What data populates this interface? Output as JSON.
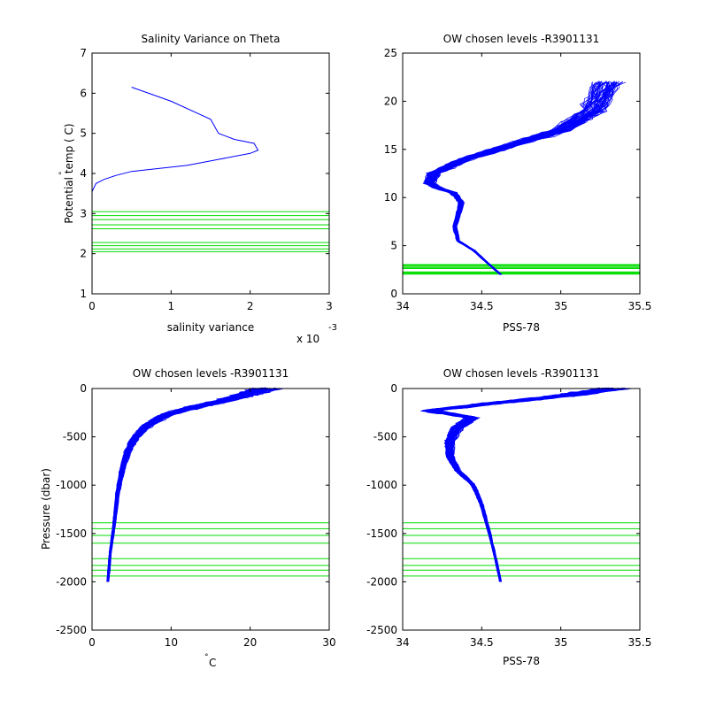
{
  "chart_data": [
    {
      "type": "line",
      "title": "Salinity Variance on Theta",
      "xlabel": "salinity variance",
      "ylabel": "Potential temp (°C)",
      "ylabel_main": "Potential temp ( C)",
      "ylabel_sup": "°",
      "xlim": [
        0,
        0.003
      ],
      "ylim": [
        1,
        7
      ],
      "xticks": [
        0,
        0.001,
        0.002,
        0.003
      ],
      "xtick_labels": [
        "0",
        "1",
        "2",
        "3"
      ],
      "yticks": [
        1,
        2,
        3,
        4,
        5,
        6,
        7
      ],
      "ytick_labels": [
        "1",
        "2",
        "3",
        "4",
        "5",
        "6",
        "7"
      ],
      "x_exponent_base": "x 10",
      "x_exponent_power": "-3",
      "series": [
        {
          "color": "#0000ff",
          "x": [
            0.0005,
            0.001,
            0.0015,
            0.0016,
            0.0018,
            0.00205,
            0.0021,
            0.002,
            0.0016,
            0.0012,
            0.0005,
            0.0003,
            0.00015,
            5e-05,
            0.0,
            0.0
          ],
          "y": [
            6.15,
            5.8,
            5.35,
            5.0,
            4.85,
            4.75,
            4.58,
            4.5,
            4.35,
            4.2,
            4.05,
            3.95,
            3.85,
            3.75,
            3.55,
            3.45
          ]
        }
      ],
      "hlines": {
        "color": "#00dd00",
        "values": [
          2.05,
          2.12,
          2.2,
          2.28,
          2.62,
          2.72,
          2.85,
          2.95,
          3.05
        ]
      }
    },
    {
      "type": "line",
      "title": "OW chosen levels -R3901131",
      "xlabel": "PSS-78",
      "ylabel": "",
      "xlim": [
        34,
        35.5
      ],
      "ylim": [
        0,
        25
      ],
      "xticks": [
        34,
        34.5,
        35,
        35.5
      ],
      "xtick_labels": [
        "34",
        "34.5",
        "35",
        "35.5"
      ],
      "yticks": [
        0,
        5,
        10,
        15,
        20,
        25
      ],
      "ytick_labels": [
        "0",
        "5",
        "10",
        "15",
        "20",
        "25"
      ],
      "profile": {
        "color": "#0000ff",
        "x": [
          34.62,
          34.55,
          34.45,
          34.35,
          34.33,
          34.37,
          34.32,
          34.22,
          34.17,
          34.2,
          34.4,
          34.7,
          35.0,
          35.2,
          35.3
        ],
        "y": [
          2.0,
          3.0,
          4.5,
          5.5,
          7.0,
          9.5,
          10.5,
          11.0,
          11.5,
          12.5,
          14.0,
          15.5,
          17.0,
          19.0,
          22.0
        ]
      },
      "hlines": {
        "color": "#00dd00",
        "values": [
          2.05,
          2.12,
          2.2,
          2.28,
          2.62,
          2.72,
          2.85,
          2.95,
          3.05
        ]
      }
    },
    {
      "type": "line",
      "title": "OW chosen levels -R3901131",
      "xlabel": "C",
      "xlabel_sup": "°",
      "ylabel": "Pressure (dbar)",
      "xlim": [
        0,
        30
      ],
      "ylim": [
        -2500,
        0
      ],
      "xticks": [
        0,
        10,
        20,
        30
      ],
      "xtick_labels": [
        "0",
        "10",
        "20",
        "30"
      ],
      "yticks": [
        -2500,
        -2000,
        -1500,
        -1000,
        -500,
        0
      ],
      "ytick_labels": [
        "-2500",
        "-2000",
        "-1500",
        "-1000",
        "-500",
        "0"
      ],
      "profile": {
        "color": "#0000ff",
        "x": [
          2.0,
          2.3,
          2.8,
          3.2,
          3.8,
          4.5,
          5.5,
          7.0,
          9.5,
          13.0,
          17.0,
          20.0,
          22.0
        ],
        "y": [
          -2000,
          -1700,
          -1400,
          -1100,
          -850,
          -650,
          -500,
          -380,
          -270,
          -190,
          -120,
          -50,
          0
        ]
      },
      "hlines": {
        "color": "#00dd00",
        "values": [
          -1390,
          -1450,
          -1520,
          -1600,
          -1760,
          -1830,
          -1880,
          -1940
        ]
      }
    },
    {
      "type": "line",
      "title": "OW chosen levels -R3901131",
      "xlabel": "PSS-78",
      "ylabel": "",
      "xlim": [
        34,
        35.5
      ],
      "ylim": [
        -2500,
        0
      ],
      "xticks": [
        34,
        34.5,
        35,
        35.5
      ],
      "xtick_labels": [
        "34",
        "34.5",
        "35",
        "35.5"
      ],
      "yticks": [
        -2500,
        -2000,
        -1500,
        -1000,
        -500,
        0
      ],
      "ytick_labels": [
        "-2500",
        "-2000",
        "-1500",
        "-1000",
        "-500",
        "0"
      ],
      "profile": {
        "color": "#0000ff",
        "x": [
          34.62,
          34.58,
          34.55,
          34.5,
          34.45,
          34.35,
          34.3,
          34.3,
          34.35,
          34.45,
          34.17,
          34.6,
          35.0,
          35.35
        ],
        "y": [
          -2000,
          -1700,
          -1500,
          -1200,
          -1000,
          -850,
          -700,
          -550,
          -400,
          -300,
          -230,
          -150,
          -80,
          0
        ]
      },
      "hlines": {
        "color": "#00dd00",
        "values": [
          -1390,
          -1450,
          -1520,
          -1600,
          -1760,
          -1830,
          -1880,
          -1940
        ]
      }
    }
  ]
}
